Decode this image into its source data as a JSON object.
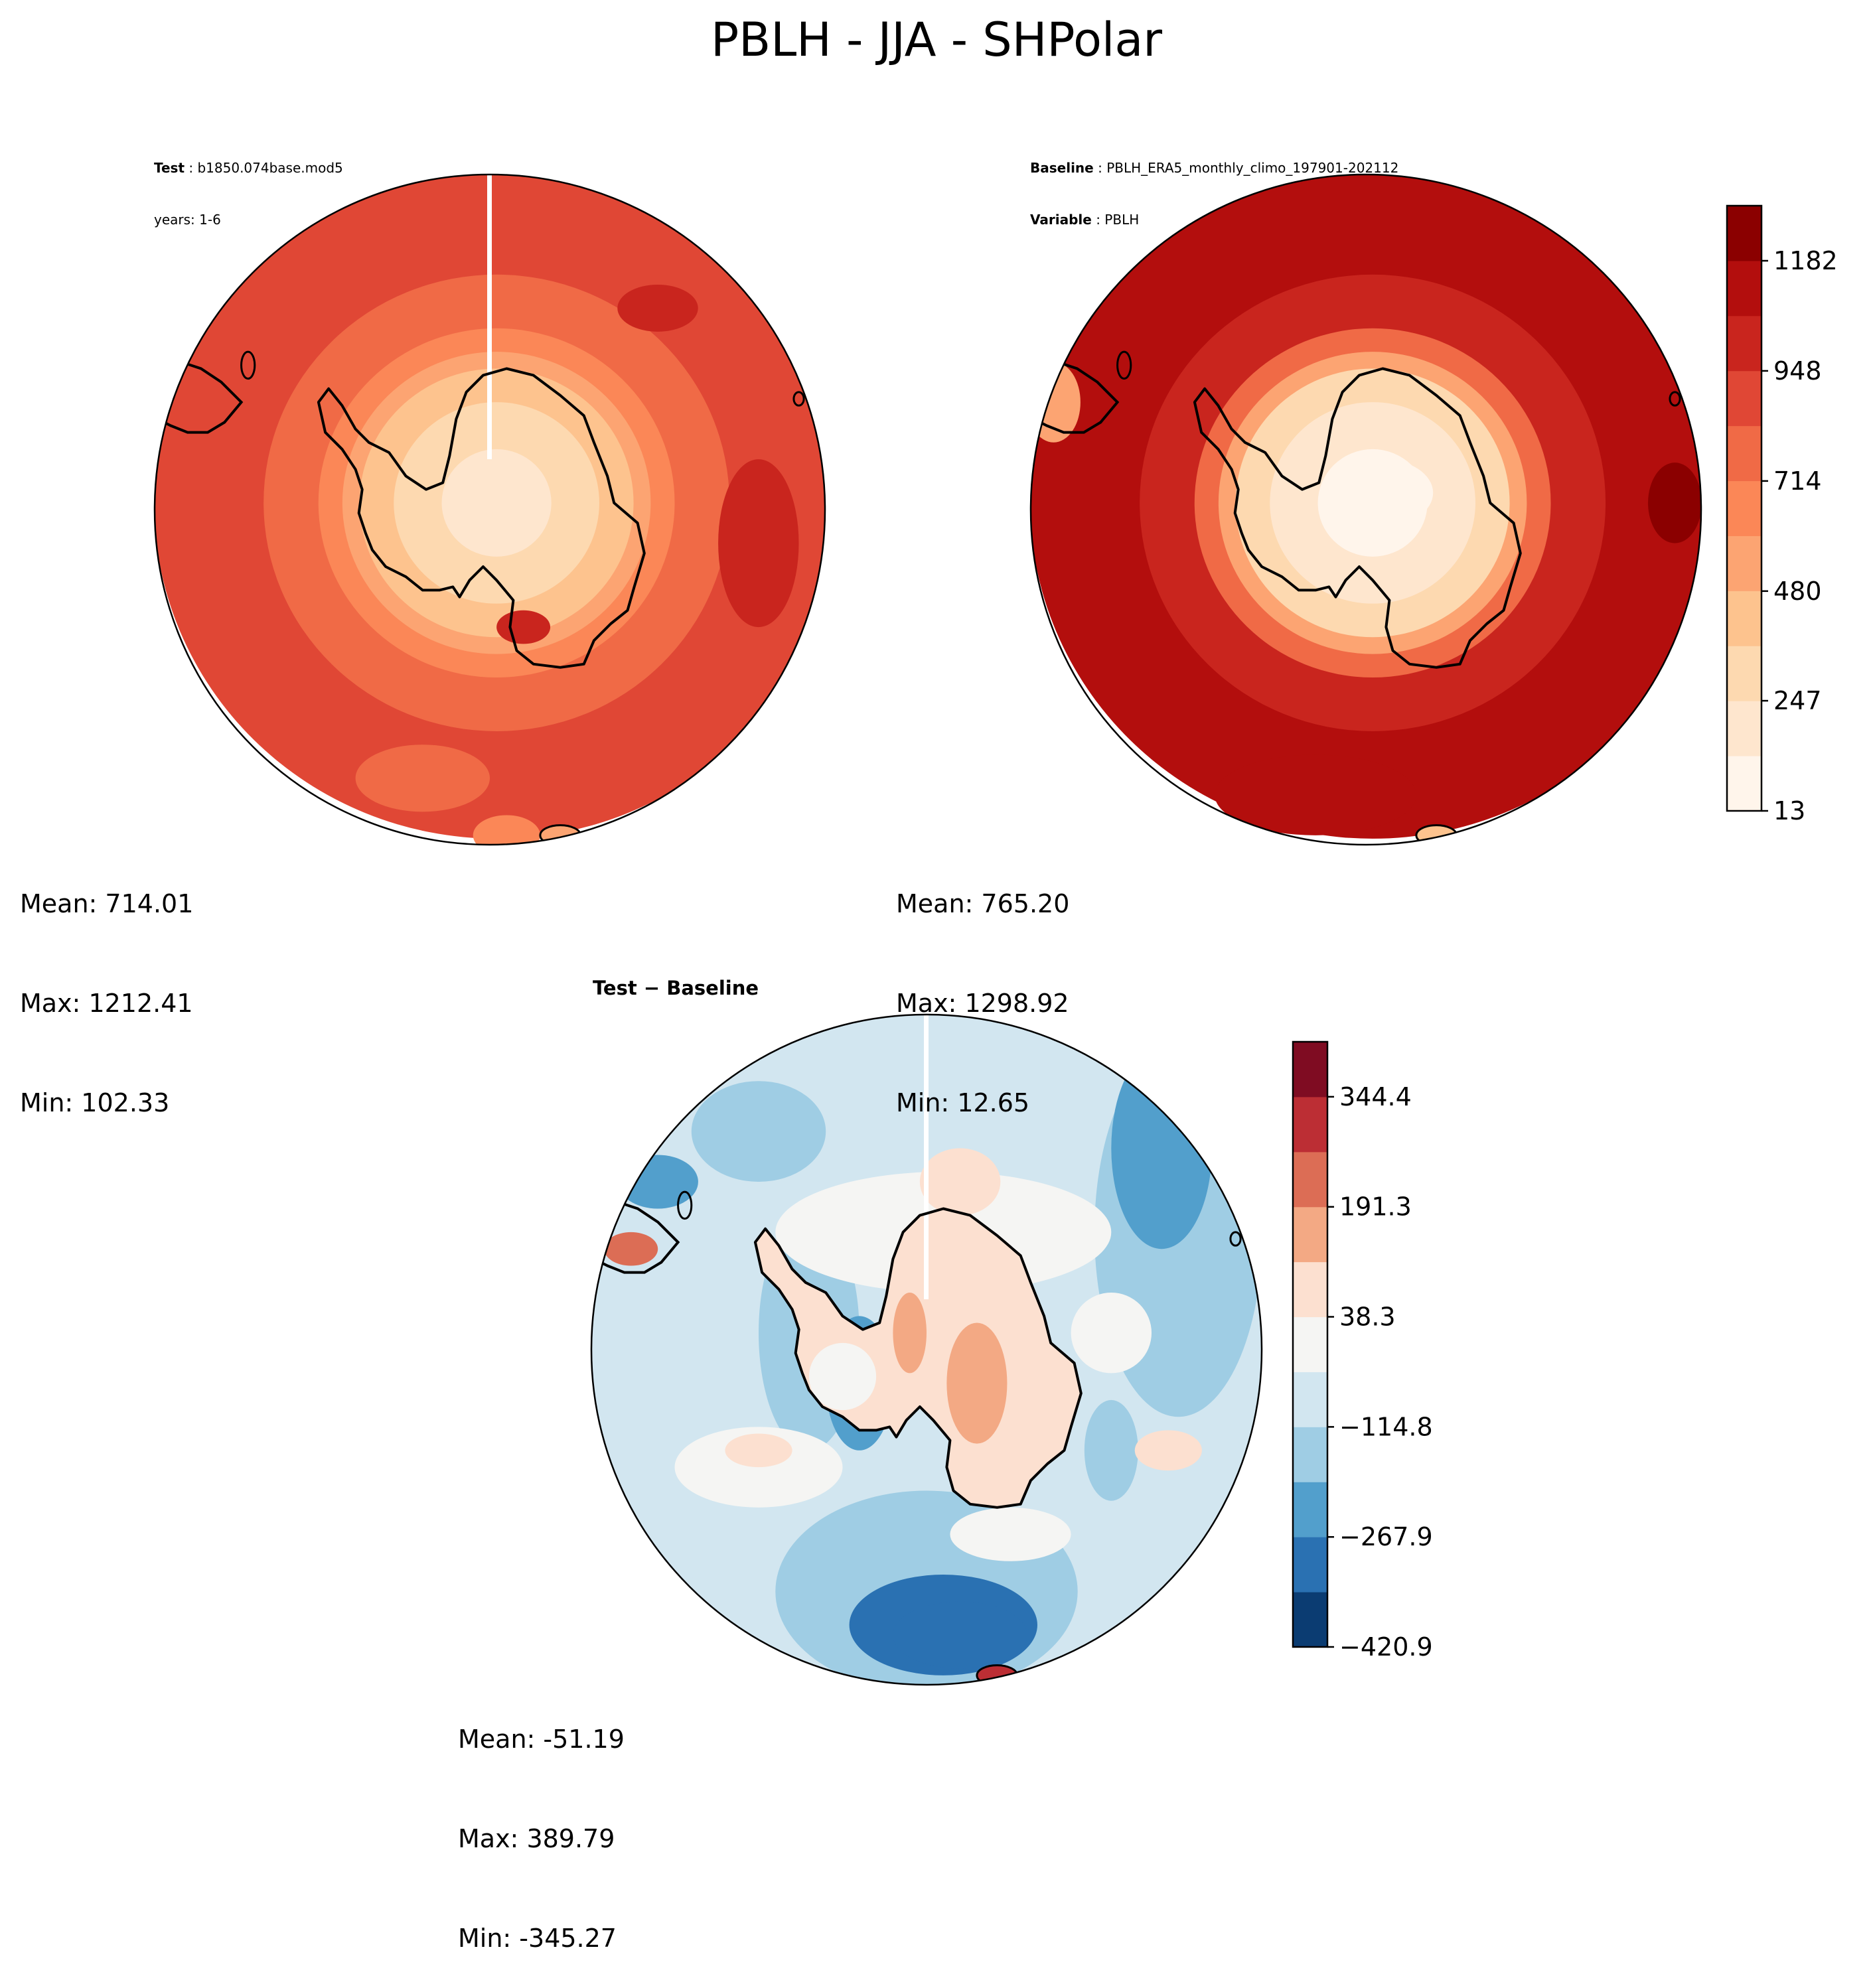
{
  "figure": {
    "title": "PBLH - JJA - SHPolar"
  },
  "panels": [
    {
      "id": "test",
      "header": [
        {
          "label": "Test",
          "sep": " : ",
          "value": "b1850.074base.mod5"
        },
        {
          "label": "",
          "sep": "",
          "value": "years: 1-6"
        }
      ],
      "stats": {
        "mean": "Mean: 714.01",
        "max": "Max: 1212.41",
        "min": "Min: 102.33"
      }
    },
    {
      "id": "baseline",
      "header": [
        {
          "label": "Baseline",
          "sep": " : ",
          "value": "PBLH_ERA5_monthly_climo_197901-202112"
        },
        {
          "label": "Variable",
          "sep": " : ",
          "value": "PBLH"
        }
      ],
      "stats": {
        "mean": "Mean: 765.20",
        "max": "Max: 1298.92",
        "min": "Min: 12.65"
      }
    },
    {
      "id": "difference",
      "header_label": "Test − Baseline",
      "stats": {
        "mean": "Mean: -51.19",
        "max": "Max: 389.79",
        "min": "Min: -345.27"
      }
    }
  ],
  "chart_data": [
    {
      "type": "heatmap",
      "projection": "south-polar-stereographic",
      "variable": "PBLH",
      "season": "JJA",
      "region": "SHPolar",
      "colorbar": {
        "cmap": "Reds",
        "tick_labels": [
          "13",
          "247",
          "480",
          "714",
          "948",
          "1182"
        ],
        "tick_values": [
          13,
          247,
          480,
          714,
          948,
          1182
        ],
        "range": [
          13,
          1299
        ],
        "levels": 11,
        "colors": [
          "#fff5eb",
          "#fee6ce",
          "#fdd9b0",
          "#fdc38e",
          "#fca472",
          "#fb8757",
          "#f06a46",
          "#e04735",
          "#c9251e",
          "#b30e0d",
          "#8b0000"
        ]
      },
      "field_rings": [
        {
          "radius_fraction": 1.0,
          "test_level": 7,
          "baseline_level": 9
        },
        {
          "radius_fraction": 0.68,
          "test_level": 6,
          "baseline_level": 8
        },
        {
          "radius_fraction": 0.52,
          "test_level": 5,
          "baseline_level": 6
        },
        {
          "radius_fraction": 0.45,
          "test_level": 4,
          "baseline_level": 4
        },
        {
          "radius_fraction": 0.4,
          "test_level": 3,
          "baseline_level": 2
        },
        {
          "radius_fraction": 0.3,
          "test_level": 2,
          "baseline_level": 1
        },
        {
          "radius_fraction": 0.16,
          "test_level": 1,
          "baseline_level": 0
        }
      ]
    },
    {
      "type": "heatmap",
      "projection": "south-polar-stereographic",
      "variable": "PBLH difference",
      "colorbar": {
        "cmap": "RdBu_r",
        "tick_labels": [
          "−420.9",
          "−267.9",
          "−114.8",
          "38.3",
          "191.3",
          "344.4"
        ],
        "tick_values": [
          -420.9,
          -267.9,
          -114.8,
          38.3,
          191.3,
          344.4
        ],
        "range": [
          -420.9,
          420.9
        ],
        "levels": 11,
        "colors": [
          "#0b3c72",
          "#2a71b2",
          "#529fcc",
          "#9fcde4",
          "#d2e6f0",
          "#f5f5f3",
          "#fce0d0",
          "#f3a984",
          "#dc6d55",
          "#bc2e34",
          "#7f0c22"
        ]
      }
    }
  ]
}
